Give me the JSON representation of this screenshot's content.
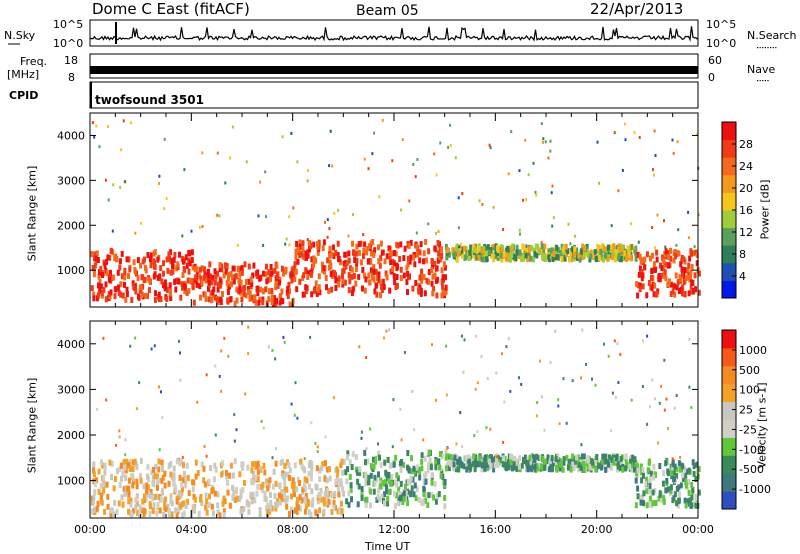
{
  "header": {
    "station": "Dome C East (fitACF)",
    "beam": "Beam 05",
    "date": "22/Apr/2013"
  },
  "top_panels": {
    "nsky_label": "N.Sky",
    "nsearch_label": "N.Search",
    "freq_label_top": "Freq.",
    "freq_label_bottom": "[MHz]",
    "nave_label": "Nave",
    "cpid_label": "CPID",
    "cpid_value": "twofsound 3501",
    "noise_ticks": [
      "10^5",
      "10^0"
    ],
    "freq_ticks": [
      "18",
      "8"
    ],
    "nave_ticks": [
      "60",
      "0"
    ]
  },
  "chart_data": [
    {
      "type": "heatmap",
      "name": "power",
      "xlabel": "Time UT",
      "ylabel": "Slant Range [km]",
      "x_ticks": [
        "00:00",
        "04:00",
        "08:00",
        "12:00",
        "16:00",
        "20:00",
        "00:00"
      ],
      "xlim_hours": [
        0,
        24
      ],
      "ylim": [
        180,
        4500
      ],
      "y_ticks": [
        1000,
        2000,
        3000,
        4000
      ],
      "colorbar": {
        "label": "Power [dB]",
        "ticks": [
          "28",
          "24",
          "20",
          "16",
          "12",
          "8",
          "4"
        ],
        "range": [
          0,
          30
        ],
        "colors": [
          "#0018e8",
          "#1f4fb4",
          "#2d7f58",
          "#5aa05c",
          "#9fcc3a",
          "#f6c71a",
          "#f39a1c",
          "#f36a1c",
          "#f03a18",
          "#ee1010"
        ]
      },
      "regions": [
        {
          "hours": [
            0,
            4
          ],
          "range_km": [
            400,
            1500
          ],
          "level": "strong"
        },
        {
          "hours": [
            4,
            8
          ],
          "range_km": [
            300,
            1200
          ],
          "level": "strong"
        },
        {
          "hours": [
            8,
            14
          ],
          "range_km": [
            500,
            1700
          ],
          "level": "strong"
        },
        {
          "hours": [
            14,
            21.5
          ],
          "range_km": [
            1300,
            1600
          ],
          "level": "moderate"
        },
        {
          "hours": [
            21.5,
            24
          ],
          "range_km": [
            500,
            1500
          ],
          "level": "strong"
        }
      ]
    },
    {
      "type": "heatmap",
      "name": "velocity",
      "xlabel": "Time UT",
      "ylabel": "Slant Range [km]",
      "x_ticks": [
        "00:00",
        "04:00",
        "08:00",
        "12:00",
        "16:00",
        "20:00",
        "00:00"
      ],
      "xlim_hours": [
        0,
        24
      ],
      "ylim": [
        180,
        4500
      ],
      "y_ticks": [
        1000,
        2000,
        3000,
        4000
      ],
      "colorbar": {
        "label": "Velocity [m s-1]",
        "ticks": [
          "1000",
          "500",
          "100",
          "25",
          "-25",
          "-100",
          "-500",
          "-1000"
        ],
        "colors": [
          "#2f4fc0",
          "#3e7a7d",
          "#3a8a5c",
          "#61c63c",
          "#cfcfc6",
          "#c8c8c0",
          "#f4a12a",
          "#f58a22",
          "#f55a1a",
          "#ee1010"
        ]
      },
      "regions": [
        {
          "hours": [
            0,
            10
          ],
          "range_km": [
            300,
            1500
          ],
          "level": "negative"
        },
        {
          "hours": [
            10,
            14
          ],
          "range_km": [
            500,
            1700
          ],
          "level": "positive"
        },
        {
          "hours": [
            14,
            21.5
          ],
          "range_km": [
            1300,
            1600
          ],
          "level": "positive"
        },
        {
          "hours": [
            21.5,
            24
          ],
          "range_km": [
            500,
            1500
          ],
          "level": "positive"
        }
      ]
    }
  ]
}
